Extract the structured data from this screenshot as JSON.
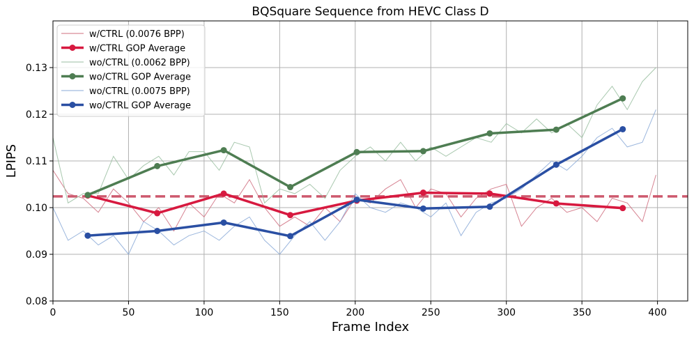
{
  "chart_data": {
    "type": "line",
    "title": "BQSquare Sequence from HEVC Class D",
    "xlabel": "Frame Index",
    "ylabel": "LPIPS",
    "xlim": [
      0,
      420
    ],
    "ylim": [
      0.08,
      0.14
    ],
    "xticks": [
      0,
      50,
      100,
      150,
      200,
      250,
      300,
      350,
      400
    ],
    "yticks": [
      0.08,
      0.09,
      0.1,
      0.11,
      0.12,
      0.13
    ],
    "ytick_labels": [
      "0.08",
      "0.09",
      "0.10",
      "0.11",
      "0.12",
      "0.13"
    ],
    "grid": true,
    "legend_position": "upper-left",
    "reference_line": {
      "y": 0.1024,
      "color": "#c8485f",
      "style": "dashed"
    },
    "series": [
      {
        "name": "w/CTRL (0.0076 BPP)",
        "kind": "raw",
        "color": "#cf6c7e",
        "x": [
          0,
          10,
          20,
          30,
          40,
          50,
          60,
          70,
          80,
          90,
          100,
          110,
          120,
          130,
          140,
          150,
          160,
          170,
          180,
          190,
          200,
          210,
          220,
          230,
          240,
          250,
          260,
          270,
          280,
          290,
          300,
          310,
          320,
          330,
          340,
          350,
          360,
          370,
          380,
          390,
          399
        ],
        "y": [
          0.108,
          0.103,
          0.102,
          0.099,
          0.104,
          0.101,
          0.097,
          0.1,
          0.095,
          0.101,
          0.098,
          0.103,
          0.101,
          0.106,
          0.1,
          0.096,
          0.098,
          0.096,
          0.1,
          0.097,
          0.102,
          0.101,
          0.104,
          0.106,
          0.1,
          0.104,
          0.103,
          0.098,
          0.102,
          0.104,
          0.105,
          0.096,
          0.1,
          0.102,
          0.099,
          0.1,
          0.097,
          0.102,
          0.101,
          0.097,
          0.107
        ]
      },
      {
        "name": "w/CTRL GOP Average",
        "kind": "average",
        "color": "#d7193f",
        "x": [
          23,
          69,
          113,
          157,
          201,
          245,
          289,
          333,
          377
        ],
        "y": [
          0.1026,
          0.0988,
          0.103,
          0.0984,
          0.1015,
          0.1032,
          0.103,
          0.1009,
          0.0999
        ]
      },
      {
        "name": "wo/CTRL (0.0062 BPP)",
        "kind": "raw",
        "color": "#99bea0",
        "x": [
          0,
          10,
          20,
          30,
          40,
          50,
          60,
          70,
          80,
          90,
          100,
          110,
          120,
          130,
          140,
          150,
          160,
          170,
          180,
          190,
          200,
          210,
          220,
          230,
          240,
          250,
          260,
          270,
          280,
          290,
          300,
          310,
          320,
          330,
          340,
          350,
          360,
          370,
          380,
          390,
          399
        ],
        "y": [
          0.115,
          0.101,
          0.103,
          0.103,
          0.111,
          0.106,
          0.109,
          0.111,
          0.107,
          0.112,
          0.112,
          0.108,
          0.114,
          0.113,
          0.101,
          0.104,
          0.103,
          0.105,
          0.102,
          0.108,
          0.111,
          0.113,
          0.11,
          0.114,
          0.11,
          0.113,
          0.111,
          0.113,
          0.115,
          0.114,
          0.118,
          0.116,
          0.119,
          0.116,
          0.118,
          0.115,
          0.122,
          0.126,
          0.121,
          0.127,
          0.13
        ]
      },
      {
        "name": "wo/CTRL GOP Average",
        "kind": "average",
        "color": "#4e7d52",
        "x": [
          23,
          69,
          113,
          157,
          201,
          245,
          289,
          333,
          377
        ],
        "y": [
          0.1027,
          0.1089,
          0.1123,
          0.1044,
          0.1119,
          0.1121,
          0.1159,
          0.1167,
          0.1234
        ]
      },
      {
        "name": "wo/CTRL (0.0075 BPP)",
        "kind": "raw",
        "color": "#8aa9d7",
        "x": [
          0,
          10,
          20,
          30,
          40,
          50,
          60,
          70,
          80,
          90,
          100,
          110,
          120,
          130,
          140,
          150,
          160,
          170,
          180,
          190,
          200,
          210,
          220,
          230,
          240,
          250,
          260,
          270,
          280,
          290,
          300,
          310,
          320,
          330,
          340,
          350,
          360,
          370,
          380,
          390,
          399
        ],
        "y": [
          0.1,
          0.093,
          0.095,
          0.092,
          0.094,
          0.09,
          0.097,
          0.095,
          0.092,
          0.094,
          0.095,
          0.093,
          0.096,
          0.098,
          0.093,
          0.09,
          0.094,
          0.097,
          0.093,
          0.097,
          0.103,
          0.1,
          0.099,
          0.101,
          0.1,
          0.098,
          0.101,
          0.094,
          0.099,
          0.101,
          0.102,
          0.104,
          0.107,
          0.11,
          0.108,
          0.111,
          0.115,
          0.117,
          0.113,
          0.114,
          0.121
        ]
      },
      {
        "name": "wo/CTRL GOP Average",
        "kind": "average",
        "color": "#2a4fa3",
        "x": [
          23,
          69,
          113,
          157,
          201,
          245,
          289,
          333,
          377
        ],
        "y": [
          0.094,
          0.095,
          0.0968,
          0.0939,
          0.1017,
          0.0998,
          0.1002,
          0.1092,
          0.1168
        ]
      }
    ]
  }
}
